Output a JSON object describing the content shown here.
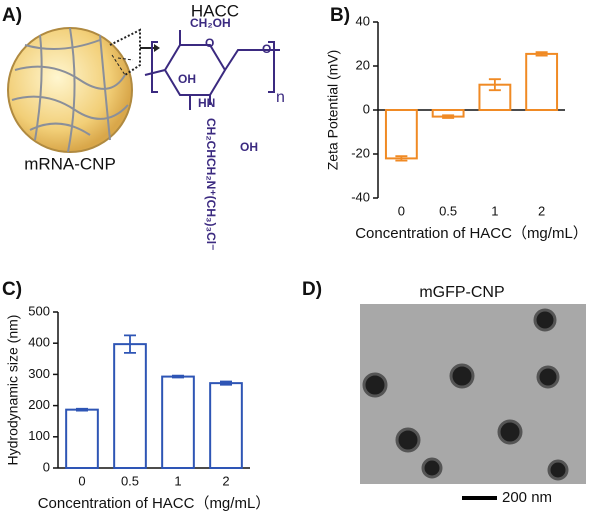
{
  "panel_labels": [
    "A)",
    "B)",
    "C)",
    "D)"
  ],
  "diagram": {
    "title": "HACC",
    "particle_label": "mRNA-CNP",
    "structure": {
      "ch2oh": "CH₂OH",
      "ring_o": "O",
      "oh": "OH",
      "link_o": "O",
      "nh": "HN",
      "oh2": "OH",
      "side_chain": "CH₂CHCH₂N⁺(CH₃)₃Cl⁻",
      "n": "n"
    }
  },
  "micrograph": {
    "title": "mGFP-CNP",
    "scale_bar": "200 nm"
  },
  "chart_data": [
    {
      "type": "bar",
      "categories": [
        "0",
        "0.5",
        "1",
        "2"
      ],
      "values": [
        -22,
        -3,
        11.5,
        25.5
      ],
      "errors": [
        1,
        0.6,
        2.5,
        0.8
      ],
      "color": "#f08a24",
      "ylim": [
        -40,
        40
      ],
      "yticks": [
        -40,
        -20,
        0,
        20,
        40
      ],
      "y_label": "Zeta Potential (mV)",
      "x_label": "Concentration of HACC（mg/mL）"
    },
    {
      "type": "bar",
      "categories": [
        "0",
        "0.5",
        "1",
        "2"
      ],
      "values": [
        187,
        397,
        293,
        272
      ],
      "errors": [
        3,
        28,
        3,
        5
      ],
      "color": "#2e55b5",
      "ylim": [
        0,
        500
      ],
      "yticks": [
        0,
        100,
        200,
        300,
        400,
        500
      ],
      "y_label": "Hydrodynamic size (nm)",
      "x_label": "Concentration of HACC（mg/mL）"
    }
  ]
}
